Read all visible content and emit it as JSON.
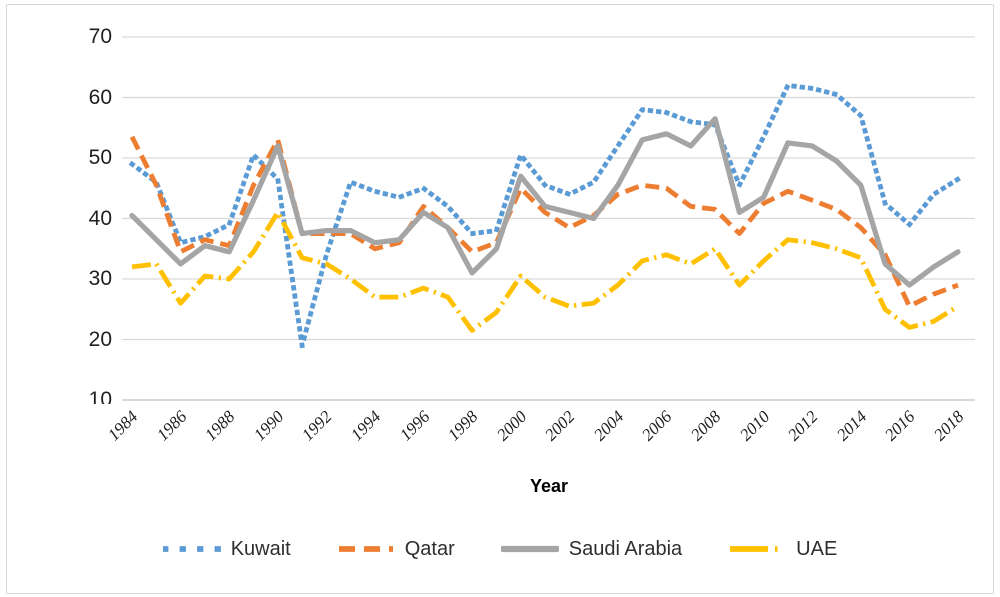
{
  "chart_data": {
    "type": "line",
    "title": "",
    "xlabel": "Year",
    "ylabel": "",
    "x": [
      1984,
      1985,
      1986,
      1987,
      1988,
      1989,
      1990,
      1991,
      1992,
      1993,
      1994,
      1995,
      1996,
      1997,
      1998,
      1999,
      2000,
      2001,
      2002,
      2003,
      2004,
      2005,
      2006,
      2007,
      2008,
      2009,
      2010,
      2011,
      2012,
      2013,
      2014,
      2015,
      2016,
      2017,
      2018
    ],
    "x_tick_labels": [
      "1984",
      "1986",
      "1988",
      "1990",
      "1992",
      "1994",
      "1996",
      "1998",
      "2000",
      "2002",
      "2004",
      "2006",
      "2008",
      "2010",
      "2012",
      "2014",
      "2016",
      "2018"
    ],
    "y_ticks": [
      70,
      60,
      50,
      40,
      30,
      20,
      10
    ],
    "ylim": [
      10,
      70
    ],
    "grid": true,
    "legend_position": "bottom",
    "series": [
      {
        "name": "Kuwait",
        "color": "#5B9BD5",
        "style": "dotted",
        "values": [
          49,
          46,
          36,
          37,
          39,
          50.5,
          46.5,
          19,
          34,
          46,
          44.5,
          43.5,
          45,
          42,
          37.5,
          38,
          50.5,
          45.5,
          44,
          46,
          52,
          58,
          57.5,
          56,
          55.5,
          45.5,
          53.5,
          62,
          61.5,
          60.5,
          57,
          42.5,
          39,
          44,
          46.5
        ]
      },
      {
        "name": "Qatar",
        "color": "#ED7D31",
        "style": "dashed",
        "values": [
          53.5,
          45.5,
          34.5,
          36.5,
          35.5,
          45.5,
          53,
          37.5,
          37.5,
          37.5,
          35,
          36,
          42,
          38.5,
          34.5,
          36,
          45,
          41,
          38.5,
          40.5,
          44,
          45.5,
          45,
          42,
          41.5,
          37.5,
          42.5,
          44.5,
          43,
          41.5,
          38.5,
          34,
          25.5,
          27.5,
          29
        ]
      },
      {
        "name": "Saudi Arabia",
        "color": "#A5A5A5",
        "style": "solid",
        "values": [
          40.5,
          36.5,
          32.5,
          35.5,
          34.5,
          43,
          52,
          37.5,
          38,
          38,
          36,
          36.5,
          41,
          38.5,
          31,
          35,
          47,
          42,
          41,
          40,
          45.5,
          53,
          54,
          52,
          56.5,
          41,
          43.5,
          52.5,
          52,
          49.5,
          45.5,
          32.5,
          29,
          32,
          34.5
        ]
      },
      {
        "name": "UAE",
        "color": "#FFC000",
        "style": "dash-dot",
        "values": [
          32,
          32.5,
          26,
          30.5,
          30,
          34.5,
          41,
          33.5,
          32.5,
          30,
          27,
          27,
          28.5,
          27,
          21.5,
          24.5,
          30.5,
          27,
          25.5,
          26,
          29,
          33,
          34,
          32.5,
          35,
          29,
          33,
          36.5,
          36,
          35,
          33.5,
          25,
          22,
          23,
          25.5
        ]
      }
    ]
  },
  "axis": {
    "x_title": "Year"
  },
  "legend": {
    "items": [
      {
        "label": "Kuwait",
        "color": "#5B9BD5",
        "style": "dotted"
      },
      {
        "label": "Qatar",
        "color": "#ED7D31",
        "style": "dashed"
      },
      {
        "label": "Saudi Arabia",
        "color": "#A5A5A5",
        "style": "solid"
      },
      {
        "label": "UAE",
        "color": "#FFC000",
        "style": "dash-dot"
      }
    ]
  },
  "colors": {
    "gridline": "#D9D9D9",
    "axis_line": "#C6C6C6",
    "tick_text": "#1F1F1F",
    "legend_text": "#2E2E2E",
    "background": "#FFFFFF",
    "border": "#D6D6D6"
  }
}
